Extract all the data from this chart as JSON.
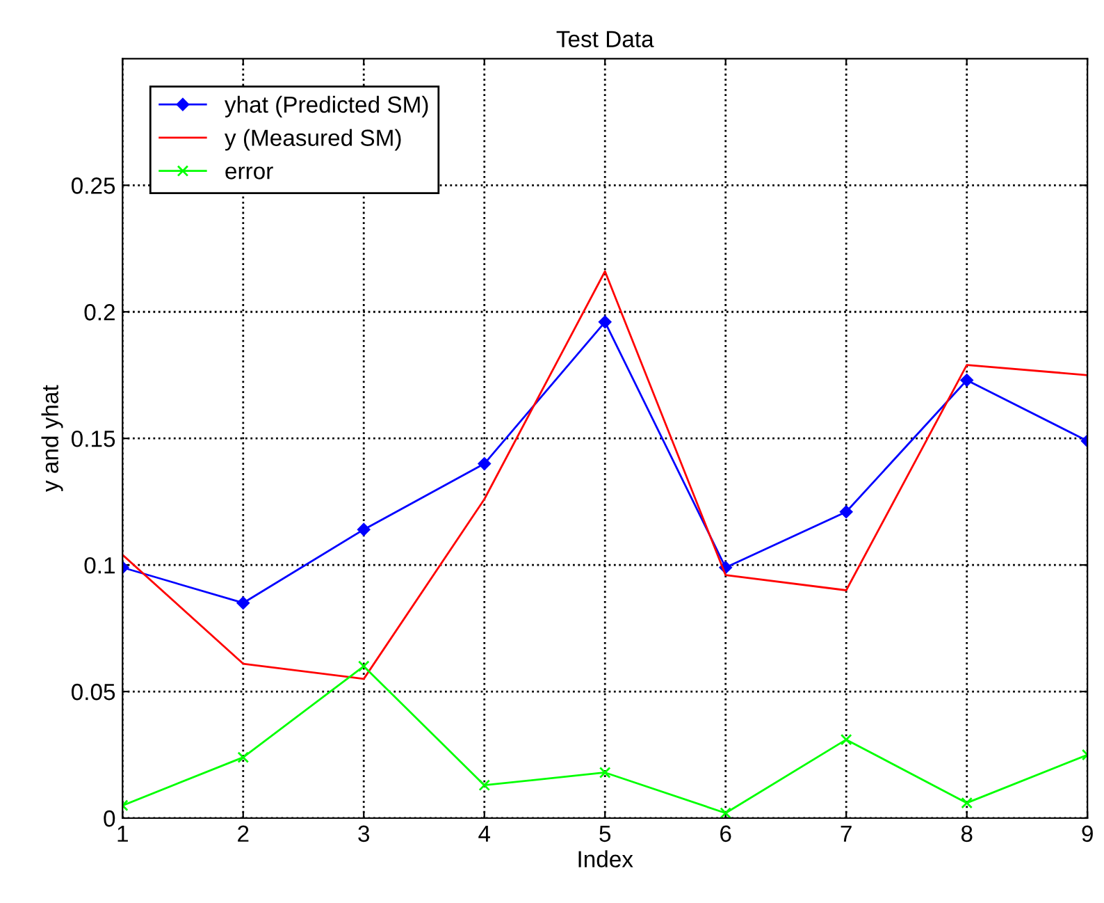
{
  "chart_data": {
    "type": "line",
    "title": "Test Data",
    "xlabel": "Index",
    "ylabel": "y and yhat",
    "x": [
      1,
      2,
      3,
      4,
      5,
      6,
      7,
      8,
      9
    ],
    "series": [
      {
        "name": "yhat (Predicted SM)",
        "color": "#0000ff",
        "marker": "diamond",
        "values": [
          0.099,
          0.085,
          0.114,
          0.14,
          0.196,
          0.099,
          0.121,
          0.173,
          0.149
        ]
      },
      {
        "name": "y (Measured SM)",
        "color": "#ff0000",
        "marker": "none",
        "values": [
          0.104,
          0.061,
          0.055,
          0.126,
          0.216,
          0.096,
          0.09,
          0.179,
          0.175
        ]
      },
      {
        "name": "error",
        "color": "#00ff00",
        "marker": "cross",
        "values": [
          0.005,
          0.024,
          0.06,
          0.013,
          0.018,
          0.002,
          0.031,
          0.006,
          0.025
        ]
      }
    ],
    "xlim": [
      1,
      9
    ],
    "xticks": [
      1,
      2,
      3,
      4,
      5,
      6,
      7,
      8,
      9
    ],
    "ylim": [
      0,
      0.3
    ],
    "yticks": [
      0,
      0.05,
      0.1,
      0.15,
      0.2,
      0.25
    ],
    "grid": true,
    "legend": "top left",
    "line_style": "solid"
  }
}
